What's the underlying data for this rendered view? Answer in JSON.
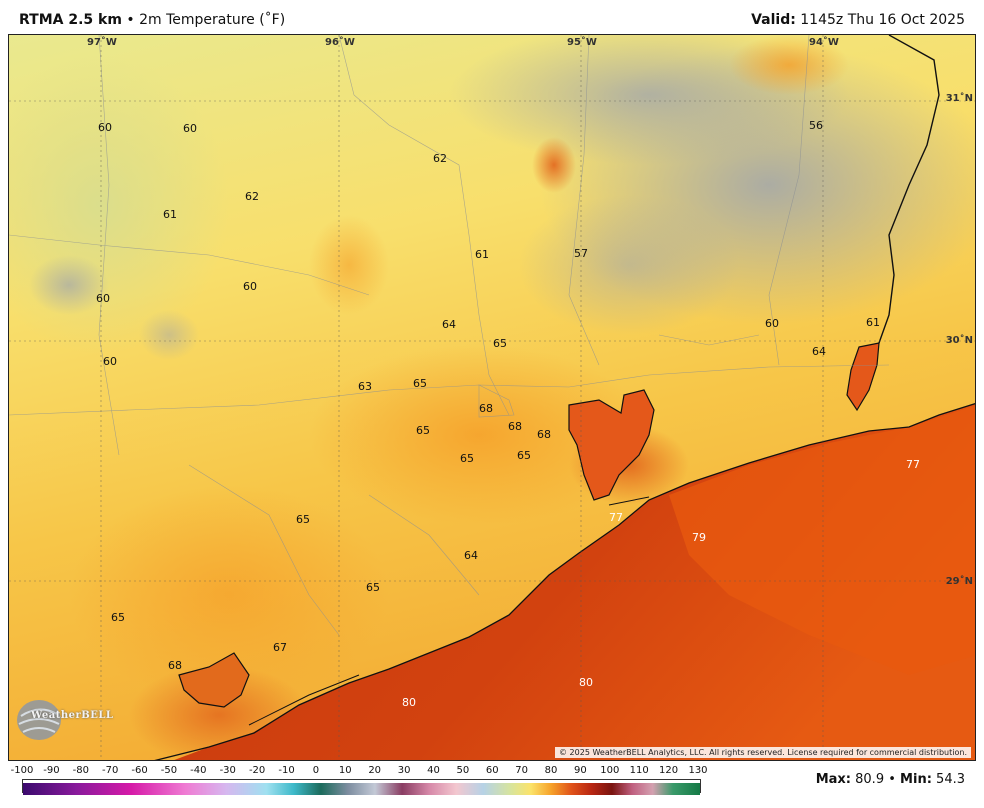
{
  "header": {
    "product": "RTMA 2.5 km",
    "separator": "•",
    "field": "2m Temperature (˚F)",
    "valid_label": "Valid:",
    "valid_time": "1145z Thu 16 Oct 2025"
  },
  "map": {
    "longitude_labels": [
      "97˚W",
      "96˚W",
      "95˚W",
      "94˚W"
    ],
    "latitude_labels": [
      "31˚N",
      "30˚N",
      "29˚N"
    ],
    "station_values": [
      "60",
      "60",
      "62",
      "61",
      "62",
      "61",
      "57",
      "56",
      "60",
      "60",
      "60",
      "64",
      "65",
      "63",
      "65",
      "68",
      "68",
      "68",
      "65",
      "65",
      "65",
      "60",
      "61",
      "64",
      "77",
      "65",
      "64",
      "79",
      "65",
      "65",
      "67",
      "68",
      "80",
      "80",
      "77"
    ],
    "copyright": "© 2025 WeatherBELL Analytics, LLC. All rights reserved. License required for commercial distribution.",
    "logo_text": "WeatherBELL",
    "logo_icon": "globe-swirl-icon",
    "colors": {
      "cool": "#e6e89a",
      "mild": "#fbe36a",
      "warm": "#f6a22a",
      "hot": "#e0531a",
      "gulf": "#cc3a0e",
      "lake_gray": "#9aa0a6"
    }
  },
  "scale": {
    "ticks": [
      "-100",
      "-90",
      "-80",
      "-70",
      "-60",
      "-50",
      "-40",
      "-30",
      "-20",
      "-10",
      "0",
      "10",
      "20",
      "30",
      "40",
      "50",
      "60",
      "70",
      "80",
      "90",
      "100",
      "110",
      "120",
      "130"
    ]
  },
  "stats": {
    "max_label": "Max:",
    "max_value": "80.9",
    "dot": "•",
    "min_label": "Min:",
    "min_value": "54.3"
  }
}
